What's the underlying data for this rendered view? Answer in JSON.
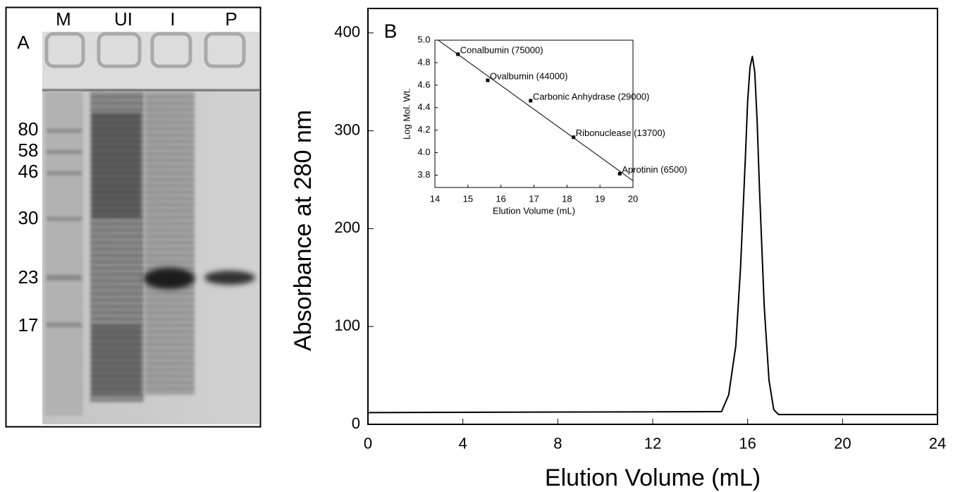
{
  "gel": {
    "panel_label": "A",
    "lanes": [
      "M",
      "UI",
      "I",
      "P"
    ],
    "markers": [
      80,
      58,
      46,
      30,
      23,
      17
    ]
  },
  "chart_data": [
    {
      "type": "line",
      "panel_label": "B",
      "xlabel": "Elution Volume (mL)",
      "ylabel": "Absorbance at 280 nm",
      "x": [
        0,
        14.9,
        15.2,
        15.5,
        15.7,
        15.9,
        16.0,
        16.1,
        16.2,
        16.3,
        16.4,
        16.5,
        16.7,
        16.9,
        17.1,
        17.3,
        24
      ],
      "series": [
        {
          "color": "#000000",
          "values": [
            12,
            13,
            30,
            80,
            160,
            270,
            330,
            365,
            376,
            360,
            310,
            240,
            120,
            45,
            15,
            10,
            10
          ]
        }
      ],
      "xlim": [
        0,
        24
      ],
      "ylim": [
        0,
        425
      ],
      "xticks": [
        0,
        4,
        8,
        12,
        16,
        20,
        24
      ],
      "yticks": [
        0,
        100,
        200,
        300,
        400
      ]
    },
    {
      "type": "scatter",
      "xlabel": "Elution Volume (mL)",
      "ylabel": "Log Mol. Wt.",
      "x": [
        14.7,
        15.6,
        16.9,
        18.2,
        19.6
      ],
      "values": [
        4.875,
        4.643,
        4.462,
        4.137,
        3.813
      ],
      "point_labels": [
        "Conalbumin (75000)",
        "Ovalbumin (44000)",
        "Carbonic Anhydrase (29000)",
        "Ribonuclease (13700)",
        "Aprotinin (6500)"
      ],
      "fit_line": {
        "x": [
          14.1,
          20
        ],
        "values": [
          5.0,
          3.75
        ]
      },
      "color": "#000000",
      "xlim": [
        14,
        20
      ],
      "ylim": [
        3.69,
        5.0
      ],
      "xticks": [
        14,
        15,
        16,
        17,
        18,
        19,
        20
      ],
      "yticks": [
        3.8,
        {
          "value": 4,
          "label": "4.0"
        },
        4.2,
        4.4,
        4.6,
        4.8,
        {
          "value": 5,
          "label": "5.0"
        }
      ]
    }
  ]
}
